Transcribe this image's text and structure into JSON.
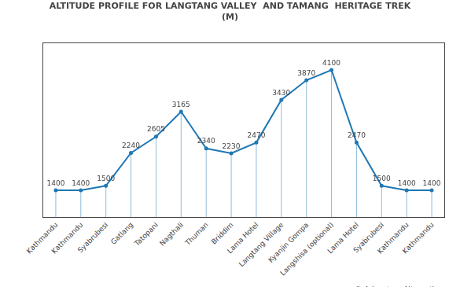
{
  "chart_data": {
    "type": "line",
    "title": "ALTITUDE PROFILE FOR LANGTANG VALLEY  AND TAMANG  HERITAGE TREK",
    "subtitle": "(M)",
    "annotation": "© Adventure Alternative",
    "categories": [
      "Kathmandu",
      "Kathmandu",
      "Syabrubesi",
      "Gatlang",
      "Tatopani",
      "Nagthali",
      "Thuman",
      "Briddim",
      "Lama Hotel",
      "Langtang Village",
      "Kyanjin Gompa",
      "Langshisa (optional)",
      "Lama Hotel",
      "Syabrubesi",
      "Kathmandu",
      "Kathmandu"
    ],
    "values": [
      1400,
      1400,
      1500,
      2240,
      2605,
      3165,
      2340,
      2230,
      2470,
      3430,
      3870,
      4100,
      2470,
      1500,
      1400,
      1400
    ],
    "ylim": [
      800,
      4700
    ],
    "yticks": [],
    "tick_labels": "x",
    "grid": false,
    "data_labels": true,
    "marker": "circle"
  }
}
